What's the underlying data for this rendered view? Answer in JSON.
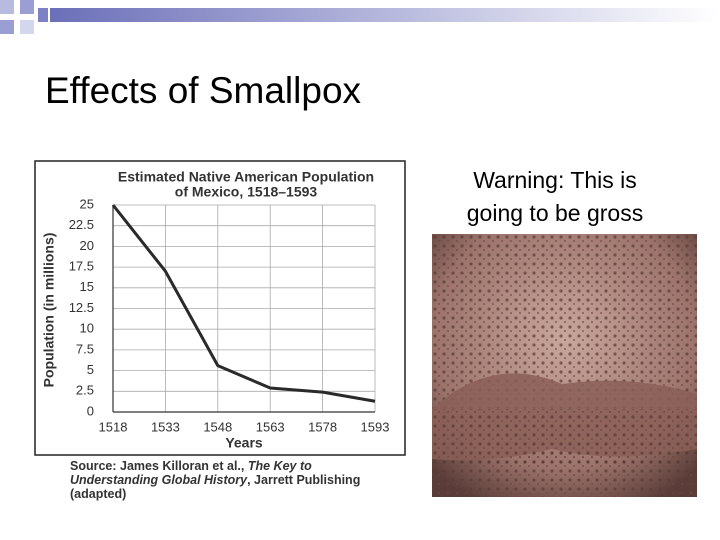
{
  "slide_title": "Effects of Smallpox",
  "caption": [
    "Warning: This is",
    "going to be gross"
  ],
  "chart_data": {
    "type": "line",
    "title": [
      "Estimated Native American Population",
      "of Mexico, 1518–1593"
    ],
    "x_label": "Years",
    "y_label": "Population (in millions)",
    "x": [
      1518,
      1533,
      1548,
      1563,
      1578,
      1593
    ],
    "values": [
      25,
      17,
      5.6,
      2.9,
      2.4,
      1.3
    ],
    "color": "#2a2a2a",
    "xlim": [
      1518,
      1593
    ],
    "xticks": [
      1518,
      1533,
      1548,
      1563,
      1578,
      1593
    ],
    "ylim": [
      0,
      25
    ],
    "yticks": [
      0,
      2.5,
      5,
      7.5,
      10,
      12.5,
      15,
      17.5,
      20,
      22.5,
      25
    ],
    "grid": true,
    "source": [
      "Source: James Killoran et al., ",
      "The Key to Understanding Global History",
      ", Jarrett Publishing (adapted)"
    ]
  }
}
